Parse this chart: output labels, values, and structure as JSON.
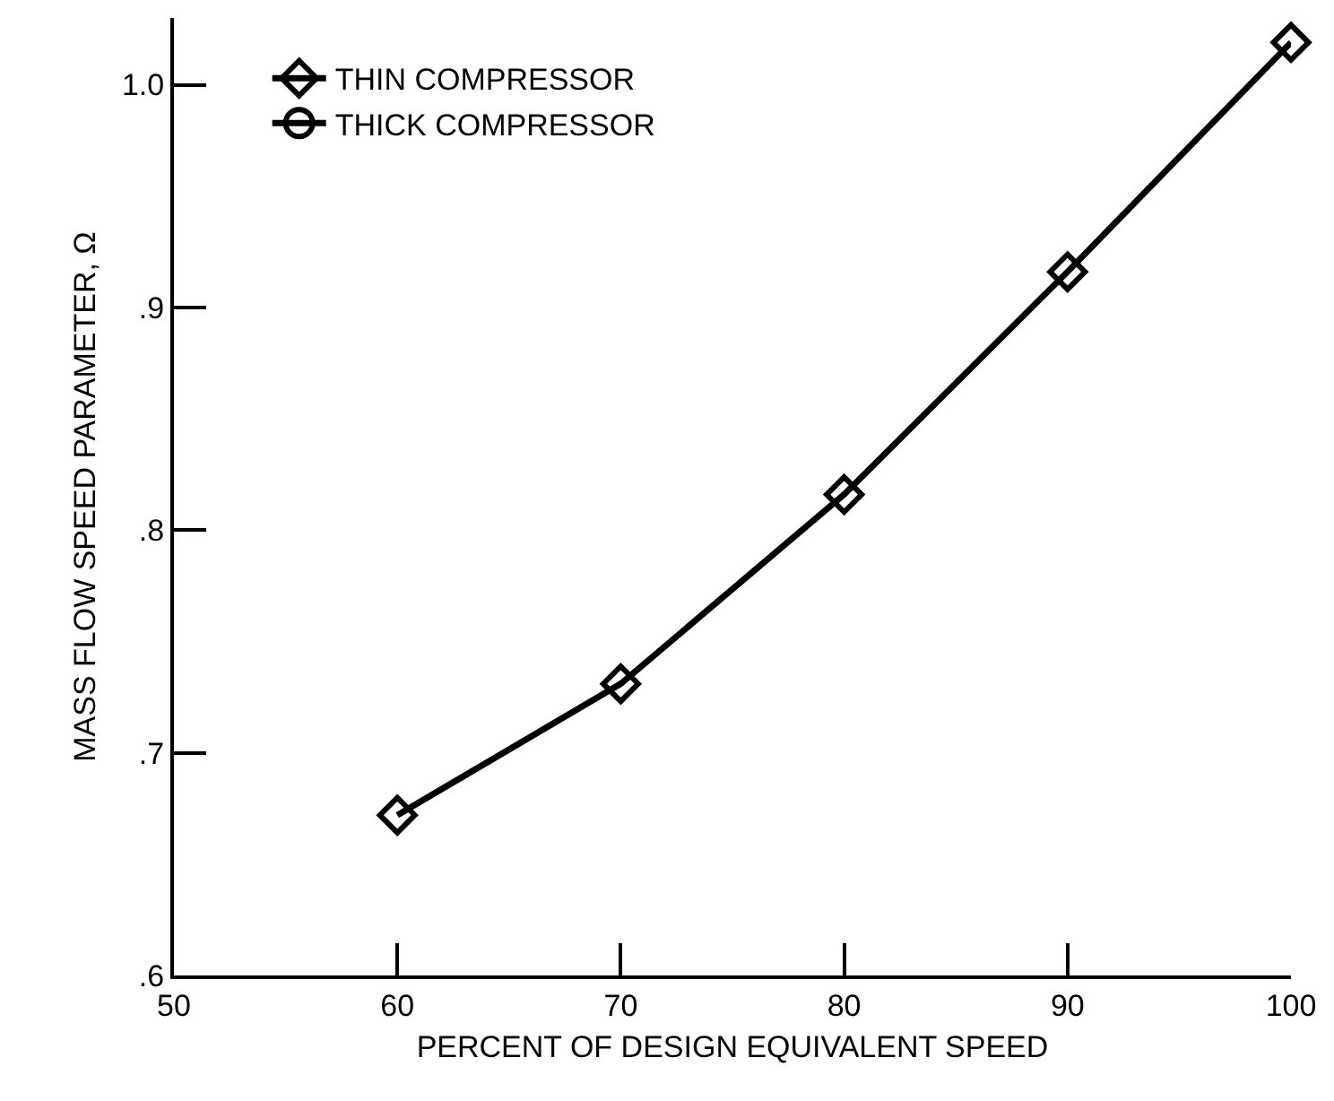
{
  "chart_data": {
    "type": "line",
    "xlabel": "PERCENT OF DESIGN EQUIVALENT SPEED",
    "ylabel": "MASS FLOW SPEED PARAMETER, Ω",
    "x": [
      60,
      70,
      80,
      90,
      100
    ],
    "series": [
      {
        "name": "THIN COMPRESSOR",
        "color": "#000000",
        "marker": "diamond",
        "values": [
          0.672,
          0.731,
          0.816,
          0.916,
          1.019
        ]
      },
      {
        "name": "THICK COMPRESSOR",
        "color": "#000000",
        "marker": "circle",
        "values": [
          null,
          null,
          null,
          null,
          null
        ]
      }
    ],
    "xlim": [
      50,
      100
    ],
    "xticks": [
      50,
      60,
      70,
      80,
      90,
      100
    ],
    "ylim": [
      0.6,
      1.03
    ],
    "yticks": [
      {
        "value": 0.6,
        "label": ".6"
      },
      {
        "value": 0.7,
        "label": ".7"
      },
      {
        "value": 0.8,
        "label": ".8"
      },
      {
        "value": 0.9,
        "label": ".9"
      },
      {
        "value": 1.0,
        "label": "1.0"
      }
    ],
    "grid": false,
    "legend": "top left",
    "line_style": "solid"
  }
}
